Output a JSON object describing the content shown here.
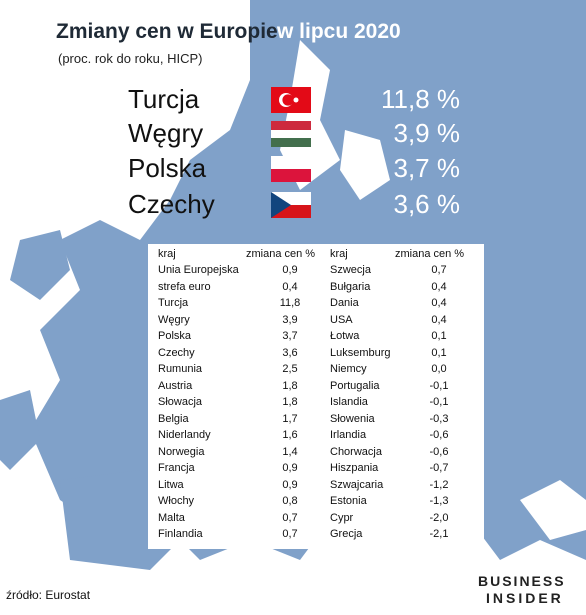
{
  "header": {
    "title_part1": "Zmiany cen w Europie",
    "title_part2": "w lipcu 2020",
    "subtitle": "(proc. rok do roku, HICP)"
  },
  "highlights": [
    {
      "country": "Turcja",
      "value": "11,8 %"
    },
    {
      "country": "Węgry",
      "value": "3,9 %"
    },
    {
      "country": "Polska",
      "value": "3,7 %"
    },
    {
      "country": "Czechy",
      "value": "3,6 %"
    }
  ],
  "table": {
    "columns": [
      "kraj",
      "zmiana cen %",
      "kraj",
      "zmiana cen %"
    ],
    "rows": [
      [
        "Unia Europejska",
        "0,9",
        "Szwecja",
        "0,7"
      ],
      [
        "strefa euro",
        "0,4",
        "Bułgaria",
        "0,4"
      ],
      [
        "Turcja",
        "11,8",
        "Dania",
        "0,4"
      ],
      [
        "Węgry",
        "3,9",
        "USA",
        "0,4"
      ],
      [
        "Polska",
        "3,7",
        "Łotwa",
        "0,1"
      ],
      [
        "Czechy",
        "3,6",
        "Luksemburg",
        "0,1"
      ],
      [
        "Rumunia",
        "2,5",
        "Niemcy",
        "0,0"
      ],
      [
        "Austria",
        "1,8",
        "Portugalia",
        "-0,1"
      ],
      [
        "Słowacja",
        "1,8",
        "Islandia",
        "-0,1"
      ],
      [
        "Belgia",
        "1,7",
        "Słowenia",
        "-0,3"
      ],
      [
        "Niderlandy",
        "1,6",
        "Irlandia",
        "-0,6"
      ],
      [
        "Norwegia",
        "1,4",
        "Chorwacja",
        "-0,6"
      ],
      [
        "Francja",
        "0,9",
        "Hiszpania",
        "-0,7"
      ],
      [
        "Litwa",
        "0,9",
        "Szwajcaria",
        "-1,2"
      ],
      [
        "Włochy",
        "0,8",
        "Estonia",
        "-1,3"
      ],
      [
        "Malta",
        "0,7",
        "Cypr",
        "-2,0"
      ],
      [
        "Finlandia",
        "0,7",
        "Grecja",
        "-2,1"
      ]
    ]
  },
  "footer": {
    "source": "źródło: Eurostat",
    "logo_line1": "BUSINESS",
    "logo_line2": "INSIDER"
  }
}
